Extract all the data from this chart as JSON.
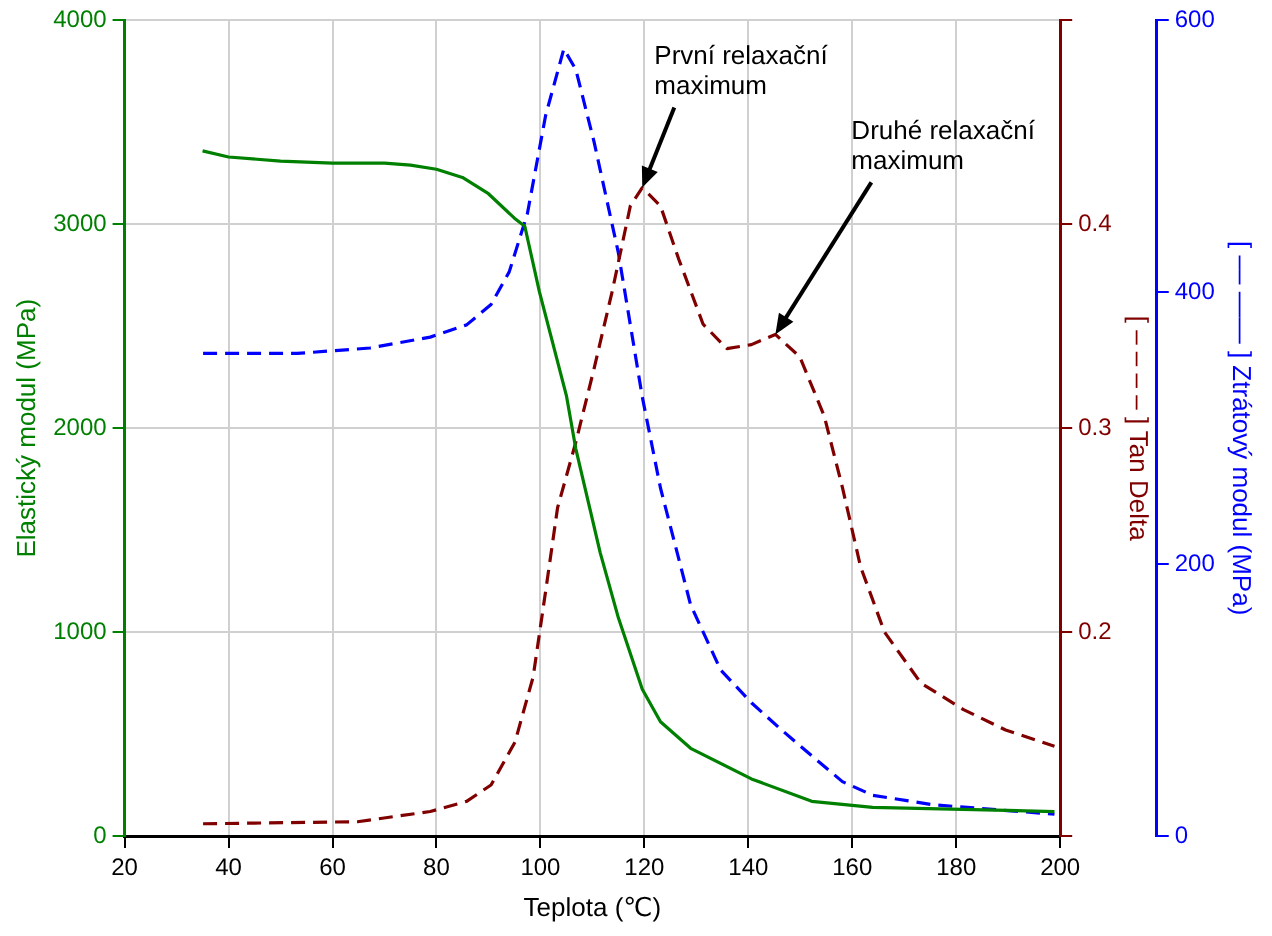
{
  "chart_data": {
    "type": "line",
    "xlabel": "Teplota (℃)",
    "ylabel": "Elastický modul (MPa)",
    "y2label": "[ – – – – ] Tan Delta",
    "y3label": "[ –– —— ] Ztrátový modul (MPa)",
    "xlim": [
      20,
      200
    ],
    "xticks": [
      20,
      40,
      60,
      80,
      100,
      120,
      140,
      160,
      180,
      200
    ],
    "ylim": [
      0,
      4000
    ],
    "yticks": [
      0,
      1000,
      2000,
      3000,
      4000
    ],
    "y2lim": [
      0.1,
      0.5
    ],
    "y2ticks": [
      {
        "value": 0.1,
        "label": null
      },
      0.2,
      0.3,
      0.4,
      {
        "value": 0.5,
        "label": null
      }
    ],
    "y3lim": [
      0,
      600
    ],
    "y3ticks": [
      0,
      200,
      400,
      600
    ],
    "grid": true,
    "legend": false,
    "marker": "none",
    "series": [
      {
        "color": "#008000",
        "line_style": "solid",
        "x": [
          35,
          40,
          50,
          60,
          70,
          75,
          80,
          85,
          90,
          95,
          97,
          99.8,
          105,
          106.8,
          111.5,
          115,
          119.6,
          123.1,
          128.9,
          140.6,
          152.2,
          163.9,
          198.9
        ],
        "values": [
          3360,
          3330,
          3310,
          3300,
          3300,
          3290,
          3270,
          3230,
          3150,
          3030,
          2990,
          2670,
          2160,
          1900,
          1390,
          1070,
          720,
          560,
          430,
          280,
          170,
          140,
          120
        ]
      },
      {
        "color": "#800000",
        "line_style": "dashed",
        "axis": "y2",
        "x": [
          35.1,
          64.8,
          78.8,
          85.8,
          90.5,
          95.1,
          98.6,
          101,
          103.3,
          106.8,
          110.3,
          113.8,
          117.3,
          119.6,
          123.1,
          126.6,
          131.3,
          135.9,
          140.6,
          145.2,
          149.9,
          154.6,
          158.1,
          161.6,
          166.2,
          173.2,
          181.4,
          189.5,
          198.9
        ],
        "values": [
          0.106,
          0.107,
          0.112,
          0.117,
          0.125,
          0.146,
          0.178,
          0.22,
          0.261,
          0.293,
          0.329,
          0.367,
          0.409,
          0.418,
          0.409,
          0.383,
          0.351,
          0.339,
          0.341,
          0.346,
          0.335,
          0.306,
          0.271,
          0.232,
          0.2,
          0.175,
          0.162,
          0.152,
          0.144
        ]
      },
      {
        "color": "#0000ff",
        "line_style": "dashed",
        "axis": "y3",
        "x": [
          35.1,
          53.2,
          67.2,
          78.8,
          85.8,
          90.5,
          94,
          97.5,
          101,
          104.5,
          106.8,
          110.3,
          115,
          119.6,
          123.1,
          128.9,
          134.7,
          140.6,
          146.4,
          152.2,
          158.1,
          163.9,
          175.5,
          198.9
        ],
        "values": [
          355,
          355,
          359,
          367,
          376,
          391,
          415,
          458,
          530,
          579,
          564,
          511,
          429,
          323,
          256,
          170,
          122,
          98,
          78,
          59,
          40,
          30,
          23,
          16
        ]
      }
    ],
    "annotations": [
      {
        "text": "První relaxační\nmaximum",
        "x": 119.6,
        "y": 3180
      },
      {
        "text": "Druhé relaxační\nmaximum",
        "x": 145.2,
        "y": 2460
      }
    ]
  }
}
